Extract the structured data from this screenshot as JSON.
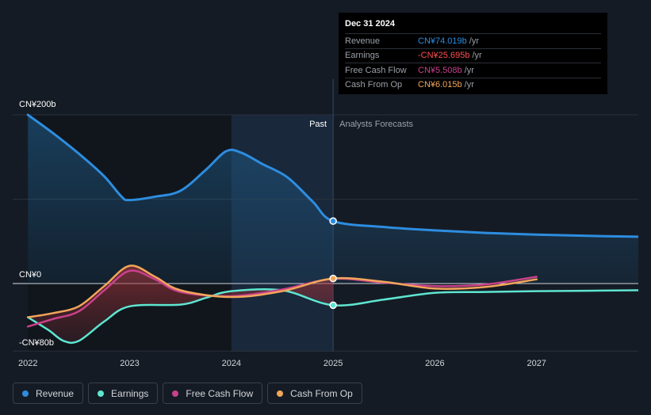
{
  "chart_data": {
    "type": "area",
    "title": "",
    "y_axis": {
      "unit": "CN¥ billions",
      "top_label": "CN¥200b",
      "zero_label": "CN¥0",
      "bottom_label": "-CN¥80b",
      "ylim": [
        -80,
        200
      ]
    },
    "x_axis": {
      "xlim": [
        2021.85,
        2028.0
      ],
      "ticks": [
        {
          "value": 2022,
          "label": "2022"
        },
        {
          "value": 2023,
          "label": "2023"
        },
        {
          "value": 2024,
          "label": "2024"
        },
        {
          "value": 2025,
          "label": "2025"
        },
        {
          "value": 2026,
          "label": "2026"
        },
        {
          "value": 2027,
          "label": "2027"
        }
      ]
    },
    "past_label": "Past",
    "forecast_label": "Analysts Forecasts",
    "past_end": 2025.0,
    "shade_start": 2024.0,
    "series": [
      {
        "name": "Revenue",
        "color": "#2d8de0",
        "area": true,
        "points": [
          [
            2022.0,
            200
          ],
          [
            2022.25,
            178
          ],
          [
            2022.5,
            154
          ],
          [
            2022.75,
            127
          ],
          [
            2022.92,
            103
          ],
          [
            2023.0,
            99
          ],
          [
            2023.25,
            103
          ],
          [
            2023.5,
            110
          ],
          [
            2023.75,
            135
          ],
          [
            2023.95,
            157
          ],
          [
            2024.1,
            155
          ],
          [
            2024.3,
            142
          ],
          [
            2024.55,
            126
          ],
          [
            2024.8,
            97
          ],
          [
            2025.0,
            74
          ],
          [
            2025.5,
            67
          ],
          [
            2026.0,
            63
          ],
          [
            2026.5,
            60
          ],
          [
            2027.0,
            58
          ],
          [
            2027.5,
            56.5
          ],
          [
            2028.0,
            55.5
          ]
        ]
      },
      {
        "name": "Earnings",
        "color": "#5ee5d0",
        "area": false,
        "points": [
          [
            2022.0,
            -40
          ],
          [
            2022.2,
            -55
          ],
          [
            2022.35,
            -68
          ],
          [
            2022.5,
            -68
          ],
          [
            2022.75,
            -45
          ],
          [
            2023.0,
            -27
          ],
          [
            2023.5,
            -25
          ],
          [
            2023.75,
            -17
          ],
          [
            2024.0,
            -9
          ],
          [
            2024.5,
            -8
          ],
          [
            2025.0,
            -25.7
          ],
          [
            2025.5,
            -19
          ],
          [
            2026.0,
            -11
          ],
          [
            2026.5,
            -10
          ],
          [
            2027.0,
            -9
          ],
          [
            2027.5,
            -8.5
          ],
          [
            2028.0,
            -8
          ]
        ]
      },
      {
        "name": "Free Cash Flow",
        "color": "#c9418b",
        "area": false,
        "points": [
          [
            2022.0,
            -51
          ],
          [
            2022.25,
            -42
          ],
          [
            2022.5,
            -33
          ],
          [
            2022.75,
            -8
          ],
          [
            2023.0,
            15
          ],
          [
            2023.25,
            5
          ],
          [
            2023.5,
            -10
          ],
          [
            2024.0,
            -15
          ],
          [
            2024.5,
            -7
          ],
          [
            2025.0,
            5.5
          ],
          [
            2025.5,
            1
          ],
          [
            2026.0,
            -3
          ],
          [
            2026.5,
            -1
          ],
          [
            2027.0,
            8
          ]
        ]
      },
      {
        "name": "Cash From Op",
        "color": "#f2a65a",
        "area": false,
        "points": [
          [
            2022.0,
            -40
          ],
          [
            2022.25,
            -35
          ],
          [
            2022.5,
            -27
          ],
          [
            2022.75,
            -3
          ],
          [
            2023.0,
            21
          ],
          [
            2023.25,
            8
          ],
          [
            2023.5,
            -8
          ],
          [
            2024.0,
            -16
          ],
          [
            2024.5,
            -9
          ],
          [
            2025.0,
            6
          ],
          [
            2025.5,
            2
          ],
          [
            2026.0,
            -6
          ],
          [
            2026.5,
            -4
          ],
          [
            2027.0,
            5
          ]
        ]
      }
    ],
    "markers": [
      {
        "series": "Revenue",
        "x": 2025.0,
        "y": 74.019
      },
      {
        "series": "Earnings",
        "x": 2025.0,
        "y": -25.695
      },
      {
        "series": "Cash From Op",
        "x": 2025.0,
        "y": 6.015
      }
    ]
  },
  "tooltip": {
    "date": "Dec 31 2024",
    "rows": [
      {
        "label": "Revenue",
        "value": "CN¥74.019b",
        "unit": "/yr",
        "color": "#2d8de0"
      },
      {
        "label": "Earnings",
        "value": "-CN¥25.695b",
        "unit": "/yr",
        "color": "#ff4d4f"
      },
      {
        "label": "Free Cash Flow",
        "value": "CN¥5.508b",
        "unit": "/yr",
        "color": "#c9418b"
      },
      {
        "label": "Cash From Op",
        "value": "CN¥6.015b",
        "unit": "/yr",
        "color": "#f2a65a"
      }
    ]
  },
  "legend": [
    {
      "label": "Revenue",
      "color": "#2d8de0"
    },
    {
      "label": "Earnings",
      "color": "#5ee5d0"
    },
    {
      "label": "Free Cash Flow",
      "color": "#c9418b"
    },
    {
      "label": "Cash From Op",
      "color": "#f2a65a"
    }
  ]
}
